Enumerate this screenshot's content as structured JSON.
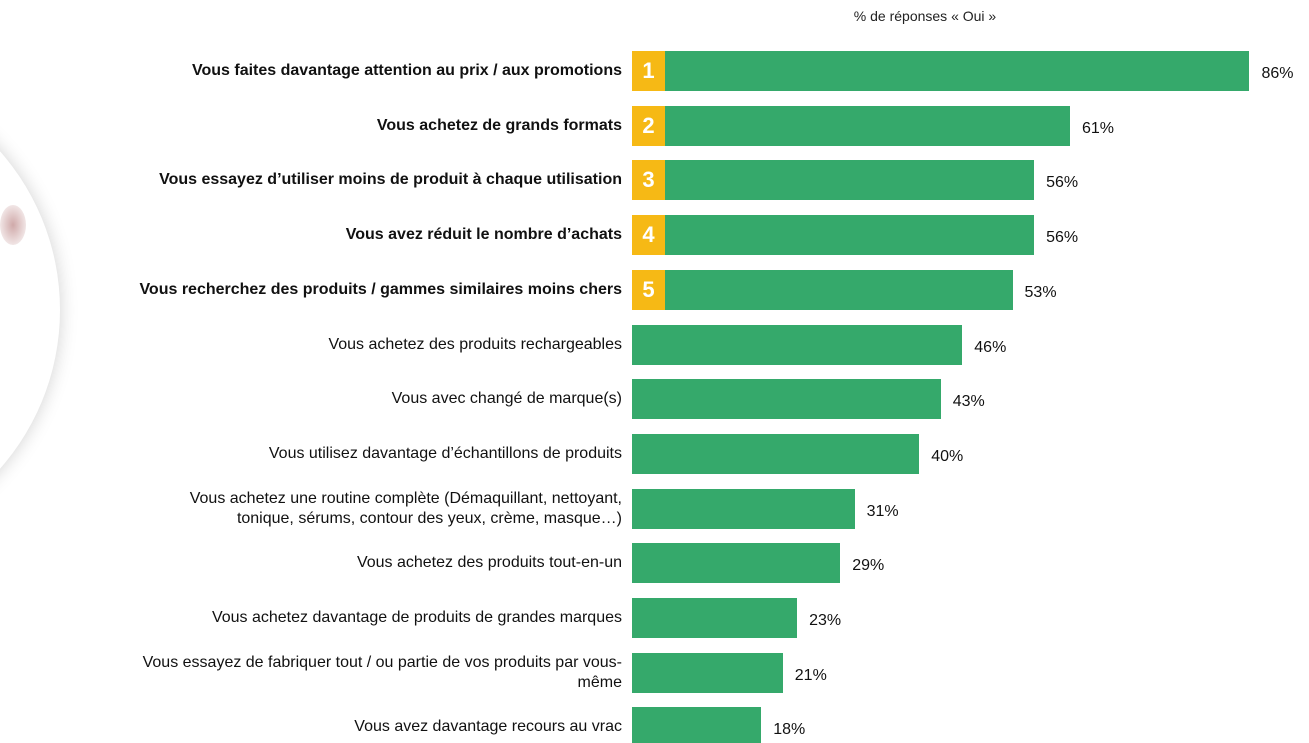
{
  "chart_data": {
    "type": "bar",
    "orientation": "horizontal",
    "title": "% de réponses « Oui »",
    "categories": [
      "Vous faites davantage attention au prix / aux promotions",
      "Vous achetez de grands formats",
      "Vous essayez d’utiliser moins de produit à chaque utilisation",
      "Vous avez réduit le nombre d’achats",
      "Vous recherchez des produits / gammes similaires moins chers",
      "Vous achetez des produits rechargeables",
      "Vous avec changé de marque(s)",
      "Vous utilisez davantage d’échantillons de produits",
      "Vous achetez une routine complète (Démaquillant, nettoyant,\ntonique, sérums, contour des yeux, crème, masque…)",
      "Vous achetez des produits tout-en-un",
      "Vous achetez davantage de produits de grandes marques",
      "Vous essayez de fabriquer tout / ou partie de vos produits par vous-\nmême",
      "Vous avez davantage recours au vrac"
    ],
    "values": [
      86,
      61,
      56,
      56,
      53,
      46,
      43,
      40,
      31,
      29,
      23,
      21,
      18
    ],
    "value_labels": [
      "86%",
      "61%",
      "56%",
      "56%",
      "53%",
      "46%",
      "43%",
      "40%",
      "31%",
      "29%",
      "23%",
      "21%",
      "18%"
    ],
    "ranks": [
      1,
      2,
      3,
      4,
      5
    ],
    "color": "#35a96b",
    "rank_color": "#f6b915"
  }
}
